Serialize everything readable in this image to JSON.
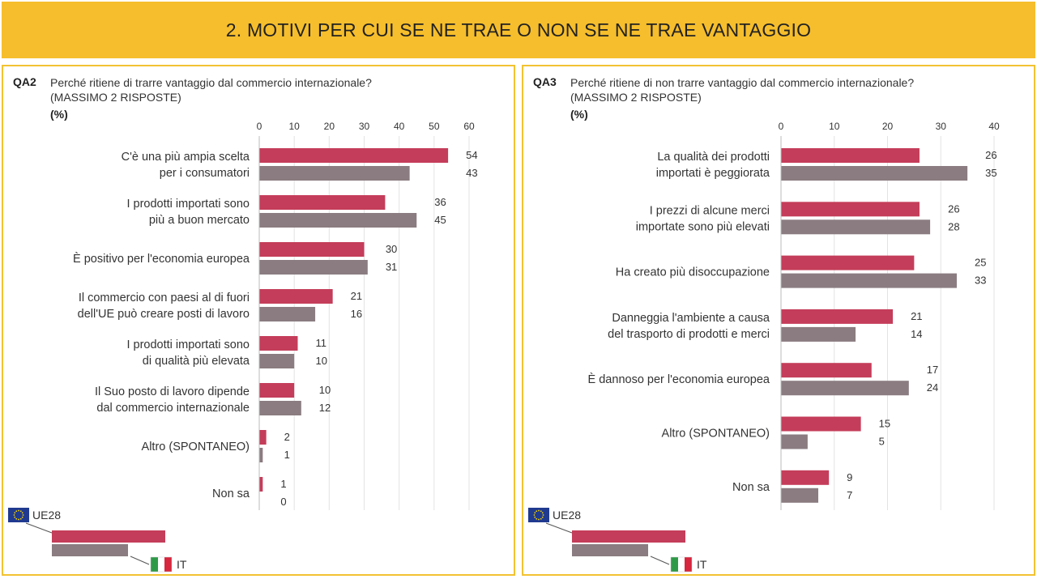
{
  "header": {
    "title": "2. MOTIVI PER CUI SE NE TRAE O NON SE NE TRAE VANTAGGIO"
  },
  "colors": {
    "header_bg": "#f6be2c",
    "panel_border": "#f2c233",
    "ue28": "#c43d5a",
    "it": "#8a7c80"
  },
  "legend": {
    "series1_label": "UE28",
    "series2_label": "IT",
    "icon1": "eu-flag-icon",
    "icon2": "italy-flag-icon"
  },
  "chart_data": [
    {
      "type": "bar",
      "orientation": "horizontal",
      "code": "QA2",
      "title": "Perché ritiene di trarre vantaggio dal commercio internazionale?\n(MASSIMO 2 RISPOSTE)",
      "unit_label": "(%)",
      "xlim": [
        0,
        60
      ],
      "ticks": [
        0,
        10,
        20,
        30,
        40,
        50,
        60
      ],
      "grid": true,
      "categories": [
        [
          "C'è una più ampia scelta",
          "per i consumatori"
        ],
        [
          "I prodotti importati sono",
          "più a buon mercato"
        ],
        [
          "È positivo per l'economia europea"
        ],
        [
          "Il commercio con paesi al di fuori",
          "dell'UE può creare posti di lavoro"
        ],
        [
          "I prodotti importati sono",
          "di qualità più elevata"
        ],
        [
          "Il Suo posto di lavoro dipende",
          "dal commercio internazionale"
        ],
        [
          "Altro (SPONTANEO)"
        ],
        [
          "Non sa"
        ]
      ],
      "series": [
        {
          "name": "UE28",
          "values": [
            54,
            36,
            30,
            21,
            11,
            10,
            2,
            1
          ]
        },
        {
          "name": "IT",
          "values": [
            43,
            45,
            31,
            16,
            10,
            12,
            1,
            0
          ]
        }
      ]
    },
    {
      "type": "bar",
      "orientation": "horizontal",
      "code": "QA3",
      "title": "Perché ritiene di non trarre vantaggio dal commercio internazionale?\n(MASSIMO 2 RISPOSTE)",
      "unit_label": "(%)",
      "xlim": [
        0,
        40
      ],
      "ticks": [
        0,
        10,
        20,
        30,
        40
      ],
      "grid": true,
      "categories": [
        [
          "La qualità dei prodotti",
          "importati è peggiorata"
        ],
        [
          "I prezzi di alcune merci",
          "importate sono più elevati"
        ],
        [
          "Ha creato più disoccupazione"
        ],
        [
          "Danneggia l'ambiente a causa",
          "del trasporto di prodotti e merci"
        ],
        [
          "È dannoso per l'economia europea"
        ],
        [
          "Altro (SPONTANEO)"
        ],
        [
          "Non sa"
        ]
      ],
      "series": [
        {
          "name": "UE28",
          "values": [
            26,
            26,
            25,
            21,
            17,
            15,
            9
          ]
        },
        {
          "name": "IT",
          "values": [
            35,
            28,
            33,
            14,
            24,
            5,
            7
          ]
        }
      ]
    }
  ]
}
